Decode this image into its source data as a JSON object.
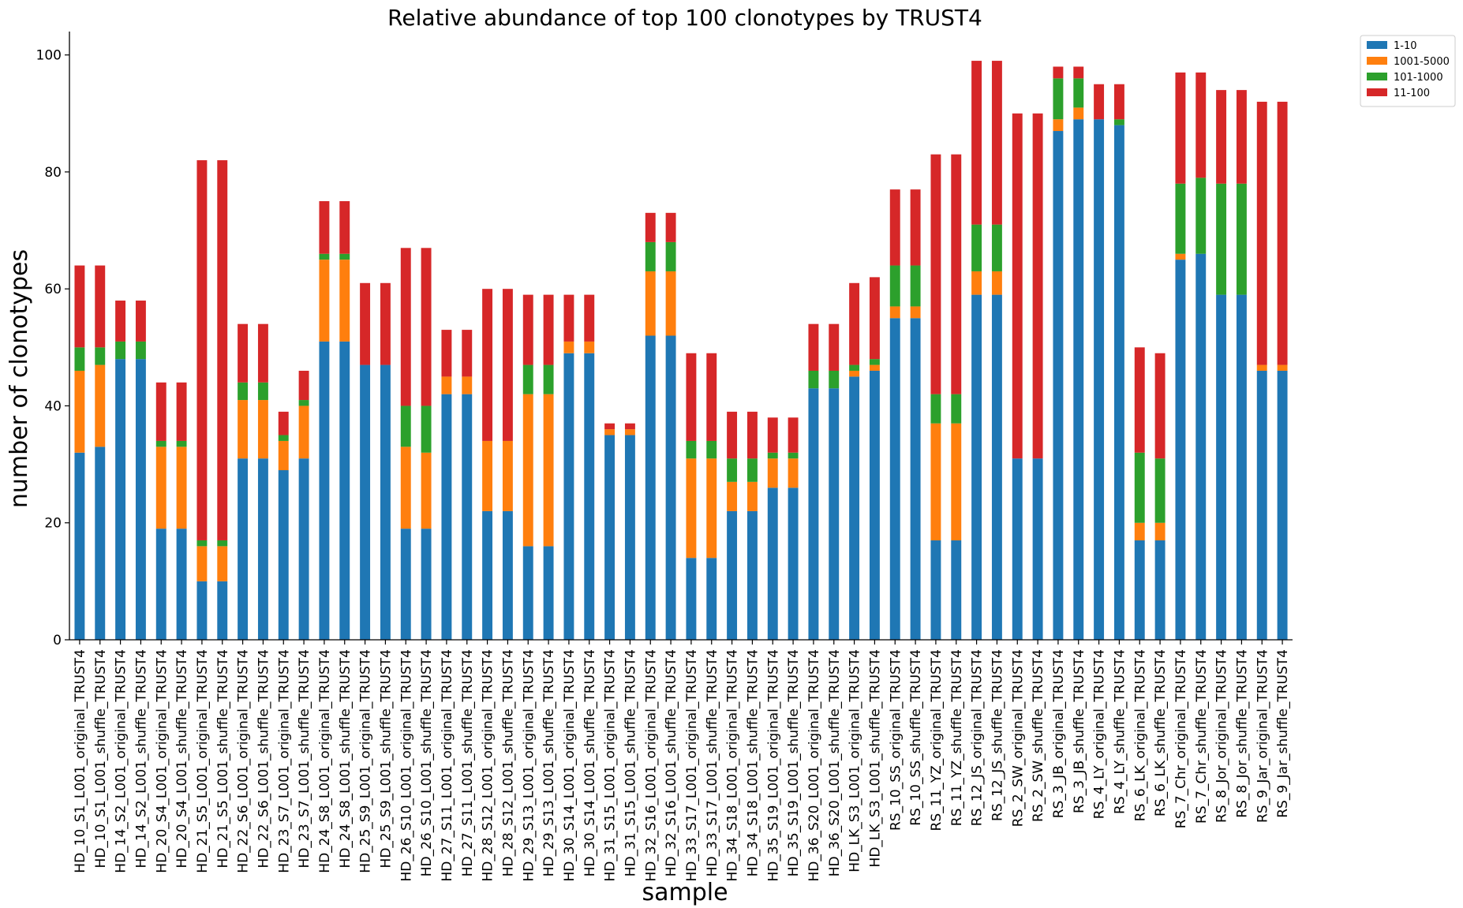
{
  "chart_data": {
    "type": "bar",
    "stacked": true,
    "title": "Relative abundance of top 100 clonotypes by TRUST4",
    "xlabel": "sample",
    "ylabel": "number of clonotypes",
    "ylim": [
      0,
      104
    ],
    "yticks": [
      0,
      20,
      40,
      60,
      80,
      100
    ],
    "legend_position": "top-right (outside plot)",
    "categories": [
      "HD_10_S1_L001_original_TRUST4",
      "HD_10_S1_L001_shuffle_TRUST4",
      "HD_14_S2_L001_original_TRUST4",
      "HD_14_S2_L001_shuffle_TRUST4",
      "HD_20_S4_L001_original_TRUST4",
      "HD_20_S4_L001_shuffle_TRUST4",
      "HD_21_S5_L001_original_TRUST4",
      "HD_21_S5_L001_shuffle_TRUST4",
      "HD_22_S6_L001_original_TRUST4",
      "HD_22_S6_L001_shuffle_TRUST4",
      "HD_23_S7_L001_original_TRUST4",
      "HD_23_S7_L001_shuffle_TRUST4",
      "HD_24_S8_L001_original_TRUST4",
      "HD_24_S8_L001_shuffle_TRUST4",
      "HD_25_S9_L001_original_TRUST4",
      "HD_25_S9_L001_shuffle_TRUST4",
      "HD_26_S10_L001_original_TRUST4",
      "HD_26_S10_L001_shuffle_TRUST4",
      "HD_27_S11_L001_original_TRUST4",
      "HD_27_S11_L001_shuffle_TRUST4",
      "HD_28_S12_L001_original_TRUST4",
      "HD_28_S12_L001_shuffle_TRUST4",
      "HD_29_S13_L001_original_TRUST4",
      "HD_29_S13_L001_shuffle_TRUST4",
      "HD_30_S14_L001_original_TRUST4",
      "HD_30_S14_L001_shuffle_TRUST4",
      "HD_31_S15_L001_original_TRUST4",
      "HD_31_S15_L001_shuffle_TRUST4",
      "HD_32_S16_L001_original_TRUST4",
      "HD_32_S16_L001_shuffle_TRUST4",
      "HD_33_S17_L001_original_TRUST4",
      "HD_33_S17_L001_shuffle_TRUST4",
      "HD_34_S18_L001_original_TRUST4",
      "HD_34_S18_L001_shuffle_TRUST4",
      "HD_35_S19_L001_original_TRUST4",
      "HD_35_S19_L001_shuffle_TRUST4",
      "HD_36_S20_L001_original_TRUST4",
      "HD_36_S20_L001_shuffle_TRUST4",
      "HD_LK_S3_L001_original_TRUST4",
      "HD_LK_S3_L001_shuffle_TRUST4",
      "RS_10_SS_original_TRUST4",
      "RS_10_SS_shuffle_TRUST4",
      "RS_11_YZ_original_TRUST4",
      "RS_11_YZ_shuffle_TRUST4",
      "RS_12_JS_original_TRUST4",
      "RS_12_JS_shuffle_TRUST4",
      "RS_2_SW_original_TRUST4",
      "RS_2_SW_shuffle_TRUST4",
      "RS_3_JB_original_TRUST4",
      "RS_3_JB_shuffle_TRUST4",
      "RS_4_LY_original_TRUST4",
      "RS_4_LY_shuffle_TRUST4",
      "RS_6_LK_original_TRUST4",
      "RS_6_LK_shuffle_TRUST4",
      "RS_7_Chr_original_TRUST4",
      "RS_7_Chr_shuffle_TRUST4",
      "RS_8_Jor_original_TRUST4",
      "RS_8_Jor_shuffle_TRUST4",
      "RS_9_Jar_original_TRUST4",
      "RS_9_Jar_shuffle_TRUST4"
    ],
    "series": [
      {
        "name": "1-10",
        "color": "#1f77b4",
        "values": [
          32,
          33,
          48,
          48,
          19,
          19,
          10,
          10,
          31,
          31,
          29,
          31,
          51,
          51,
          47,
          47,
          19,
          19,
          42,
          42,
          22,
          22,
          16,
          16,
          49,
          49,
          35,
          35,
          52,
          52,
          14,
          14,
          22,
          22,
          26,
          26,
          43,
          43,
          45,
          46,
          55,
          55,
          17,
          17,
          59,
          59,
          31,
          31,
          87,
          89,
          89,
          88,
          17,
          17,
          65,
          66,
          59,
          59,
          46,
          46
        ]
      },
      {
        "name": "1001-5000",
        "color": "#ff7f0e",
        "values": [
          14,
          14,
          0,
          0,
          14,
          14,
          6,
          6,
          10,
          10,
          5,
          9,
          14,
          14,
          0,
          0,
          14,
          13,
          3,
          3,
          12,
          12,
          26,
          26,
          2,
          2,
          1,
          1,
          11,
          11,
          17,
          17,
          5,
          5,
          5,
          5,
          0,
          0,
          1,
          1,
          2,
          2,
          20,
          20,
          4,
          4,
          0,
          0,
          2,
          2,
          0,
          0,
          3,
          3,
          1,
          0,
          0,
          0,
          1,
          1
        ]
      },
      {
        "name": "101-1000",
        "color": "#2ca02c",
        "values": [
          4,
          3,
          3,
          3,
          1,
          1,
          1,
          1,
          3,
          3,
          1,
          1,
          1,
          1,
          0,
          0,
          7,
          8,
          0,
          0,
          0,
          0,
          5,
          5,
          0,
          0,
          0,
          0,
          5,
          5,
          3,
          3,
          4,
          4,
          1,
          1,
          3,
          3,
          1,
          1,
          7,
          7,
          5,
          5,
          8,
          8,
          0,
          0,
          7,
          5,
          0,
          1,
          12,
          11,
          12,
          13,
          19,
          19,
          0,
          0
        ]
      },
      {
        "name": "11-100",
        "color": "#d62728",
        "values": [
          14,
          14,
          7,
          7,
          10,
          10,
          65,
          65,
          10,
          10,
          4,
          5,
          9,
          9,
          14,
          14,
          27,
          27,
          8,
          8,
          26,
          26,
          12,
          12,
          8,
          8,
          1,
          1,
          5,
          5,
          15,
          15,
          8,
          8,
          6,
          6,
          8,
          8,
          14,
          14,
          13,
          13,
          41,
          41,
          28,
          28,
          59,
          59,
          2,
          2,
          6,
          6,
          18,
          18,
          19,
          18,
          16,
          16,
          45,
          45
        ]
      }
    ]
  }
}
